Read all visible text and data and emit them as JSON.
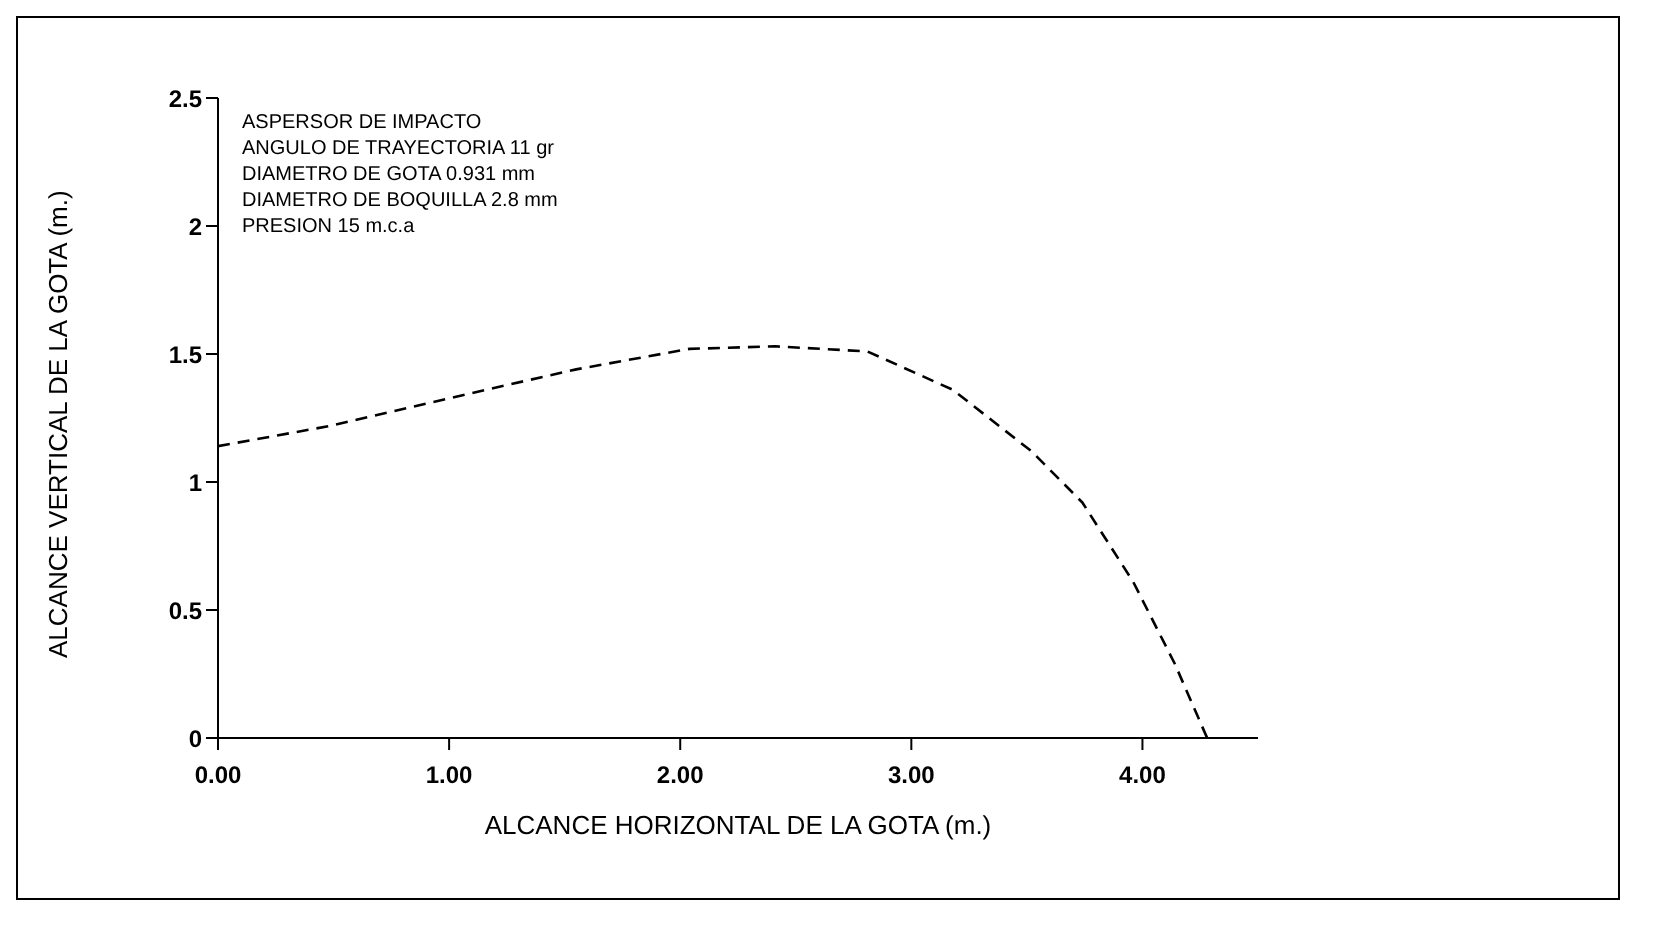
{
  "chart_data": {
    "type": "line",
    "xlabel": "ALCANCE HORIZONTAL DE LA GOTA (m.)",
    "ylabel": "ALCANCE VERTICAL DE LA GOTA (m.)",
    "annotations": [
      "ASPERSOR DE IMPACTO",
      "ANGULO DE TRAYECTORIA 11 gr",
      "DIAMETRO DE GOTA 0.931 mm",
      "DIAMETRO DE BOQUILLA 2.8 mm",
      "PRESION 15 m.c.a"
    ],
    "x": [
      0,
      0.49,
      1.11,
      1.55,
      2.04,
      2.41,
      2.81,
      3.18,
      3.52,
      3.74,
      3.96,
      4.14,
      4.28
    ],
    "series": [
      {
        "color": "#000000",
        "values": [
          1.14,
          1.22,
          1.35,
          1.44,
          1.52,
          1.53,
          1.51,
          1.36,
          1.12,
          0.92,
          0.61,
          0.29,
          0
        ]
      }
    ],
    "xlim": [
      0,
      4.5
    ],
    "xticks": [
      {
        "value": 0,
        "label": "0.00"
      },
      {
        "value": 1,
        "label": "1.00"
      },
      {
        "value": 2,
        "label": "2.00"
      },
      {
        "value": 3,
        "label": "3.00"
      },
      {
        "value": 4,
        "label": "4.00"
      }
    ],
    "ylim": [
      0,
      2.5
    ],
    "yticks": [
      0,
      0.5,
      1,
      1.5,
      2,
      2.5
    ],
    "grid": false,
    "legend": false,
    "marker": "none",
    "line_style": "dashed"
  }
}
